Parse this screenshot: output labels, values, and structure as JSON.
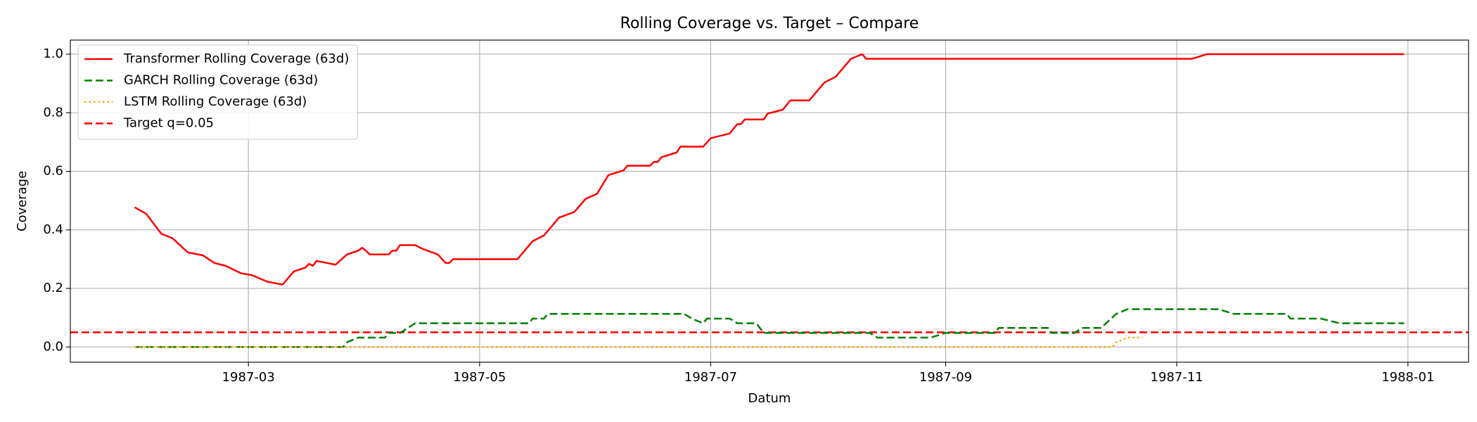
{
  "chart_data": {
    "type": "line",
    "title": "Rolling Coverage vs. Target – Compare",
    "x_label": "Datum",
    "y_label": "Coverage",
    "xlim": [
      "1987-01-13",
      "1988-01-17"
    ],
    "xticks": [
      {
        "value": "1987-03-01",
        "label": "1987-03"
      },
      {
        "value": "1987-05-01",
        "label": "1987-05"
      },
      {
        "value": "1987-07-01",
        "label": "1987-07"
      },
      {
        "value": "1987-09-01",
        "label": "1987-09"
      },
      {
        "value": "1987-11-01",
        "label": "1987-11"
      },
      {
        "value": "1988-01-01",
        "label": "1988-01"
      }
    ],
    "ylim": [
      -0.052,
      1.048
    ],
    "yticks": [
      {
        "value": 0,
        "label": "0.0"
      },
      0.2,
      0.4,
      0.6,
      0.8,
      {
        "value": 1,
        "label": "1.0"
      }
    ],
    "grid": true,
    "legend": "upper left",
    "series": [
      {
        "name": "Transformer Rolling Coverage (63d)",
        "color": "#ff0000",
        "style": "solid",
        "x": [
          "1987-01-30",
          "1987-02-02",
          "1987-02-06",
          "1987-02-09",
          "1987-02-13",
          "1987-02-17",
          "1987-02-20",
          "1987-02-23",
          "1987-02-27",
          "1987-03-02",
          "1987-03-06",
          "1987-03-10",
          "1987-03-13",
          "1987-03-16",
          "1987-03-17",
          "1987-03-18",
          "1987-03-19",
          "1987-03-24",
          "1987-03-27",
          "1987-03-30",
          "1987-03-31",
          "1987-04-01",
          "1987-04-02",
          "1987-04-07",
          "1987-04-08",
          "1987-04-09",
          "1987-04-10",
          "1987-04-14",
          "1987-04-16",
          "1987-04-20",
          "1987-04-22",
          "1987-04-23",
          "1987-04-24",
          "1987-05-11",
          "1987-05-15",
          "1987-05-18",
          "1987-05-22",
          "1987-05-26",
          "1987-05-29",
          "1987-06-01",
          "1987-06-04",
          "1987-06-08",
          "1987-06-09",
          "1987-06-15",
          "1987-06-16",
          "1987-06-17",
          "1987-06-18",
          "1987-06-22",
          "1987-06-23",
          "1987-06-29",
          "1987-07-01",
          "1987-07-06",
          "1987-07-08",
          "1987-07-09",
          "1987-07-10",
          "1987-07-15",
          "1987-07-16",
          "1987-07-20",
          "1987-07-22",
          "1987-07-27",
          "1987-07-31",
          "1987-08-03",
          "1987-08-07",
          "1987-08-10",
          "1987-08-11",
          "1987-11-05",
          "1987-11-09",
          "1987-12-31"
        ],
        "values": [
          0.477,
          0.455,
          0.387,
          0.371,
          0.323,
          0.313,
          0.287,
          0.277,
          0.252,
          0.245,
          0.223,
          0.213,
          0.258,
          0.271,
          0.284,
          0.277,
          0.294,
          0.281,
          0.316,
          0.329,
          0.339,
          0.329,
          0.316,
          0.316,
          0.329,
          0.329,
          0.348,
          0.348,
          0.335,
          0.316,
          0.287,
          0.287,
          0.3,
          0.3,
          0.361,
          0.381,
          0.442,
          0.461,
          0.506,
          0.523,
          0.587,
          0.603,
          0.619,
          0.619,
          0.632,
          0.632,
          0.648,
          0.664,
          0.684,
          0.684,
          0.713,
          0.729,
          0.761,
          0.761,
          0.777,
          0.777,
          0.797,
          0.81,
          0.842,
          0.842,
          0.903,
          0.923,
          0.984,
          1.0,
          0.984,
          0.984,
          1.0,
          1.0
        ]
      },
      {
        "name": "GARCH Rolling Coverage (63d)",
        "color": "#008000",
        "style": "dashed",
        "x": [
          "1987-01-30",
          "1987-03-26",
          "1987-03-27",
          "1987-03-30",
          "1987-04-06",
          "1987-04-07",
          "1987-04-10",
          "1987-04-14",
          "1987-05-14",
          "1987-05-15",
          "1987-05-18",
          "1987-05-19",
          "1987-06-24",
          "1987-06-26",
          "1987-06-29",
          "1987-06-30",
          "1987-07-06",
          "1987-07-08",
          "1987-07-13",
          "1987-07-15",
          "1987-08-12",
          "1987-08-14",
          "1987-08-28",
          "1987-09-01",
          "1987-09-14",
          "1987-09-15",
          "1987-09-28",
          "1987-09-29",
          "1987-10-05",
          "1987-10-07",
          "1987-10-12",
          "1987-10-16",
          "1987-10-19",
          "1987-11-12",
          "1987-11-16",
          "1987-11-30",
          "1987-12-01",
          "1987-12-09",
          "1987-12-14",
          "1987-12-31"
        ],
        "values": [
          0,
          0,
          0.016,
          0.032,
          0.032,
          0.048,
          0.048,
          0.081,
          0.081,
          0.097,
          0.097,
          0.113,
          0.113,
          0.097,
          0.081,
          0.097,
          0.097,
          0.081,
          0.081,
          0.048,
          0.048,
          0.032,
          0.032,
          0.048,
          0.048,
          0.065,
          0.065,
          0.048,
          0.048,
          0.065,
          0.065,
          0.113,
          0.129,
          0.129,
          0.113,
          0.113,
          0.097,
          0.097,
          0.081,
          0.081
        ]
      },
      {
        "name": "LSTM Rolling Coverage (63d)",
        "color": "#ffa500",
        "style": "dotted",
        "x": [
          "1987-01-30",
          "1987-10-15",
          "1987-10-16",
          "1987-10-19",
          "1987-10-23"
        ],
        "values": [
          0,
          0,
          0.016,
          0.032,
          0.032
        ]
      }
    ],
    "reference_line": {
      "name": "Target q=0.05",
      "value": 0.05,
      "color": "#ff0000",
      "style": "dashed"
    }
  }
}
